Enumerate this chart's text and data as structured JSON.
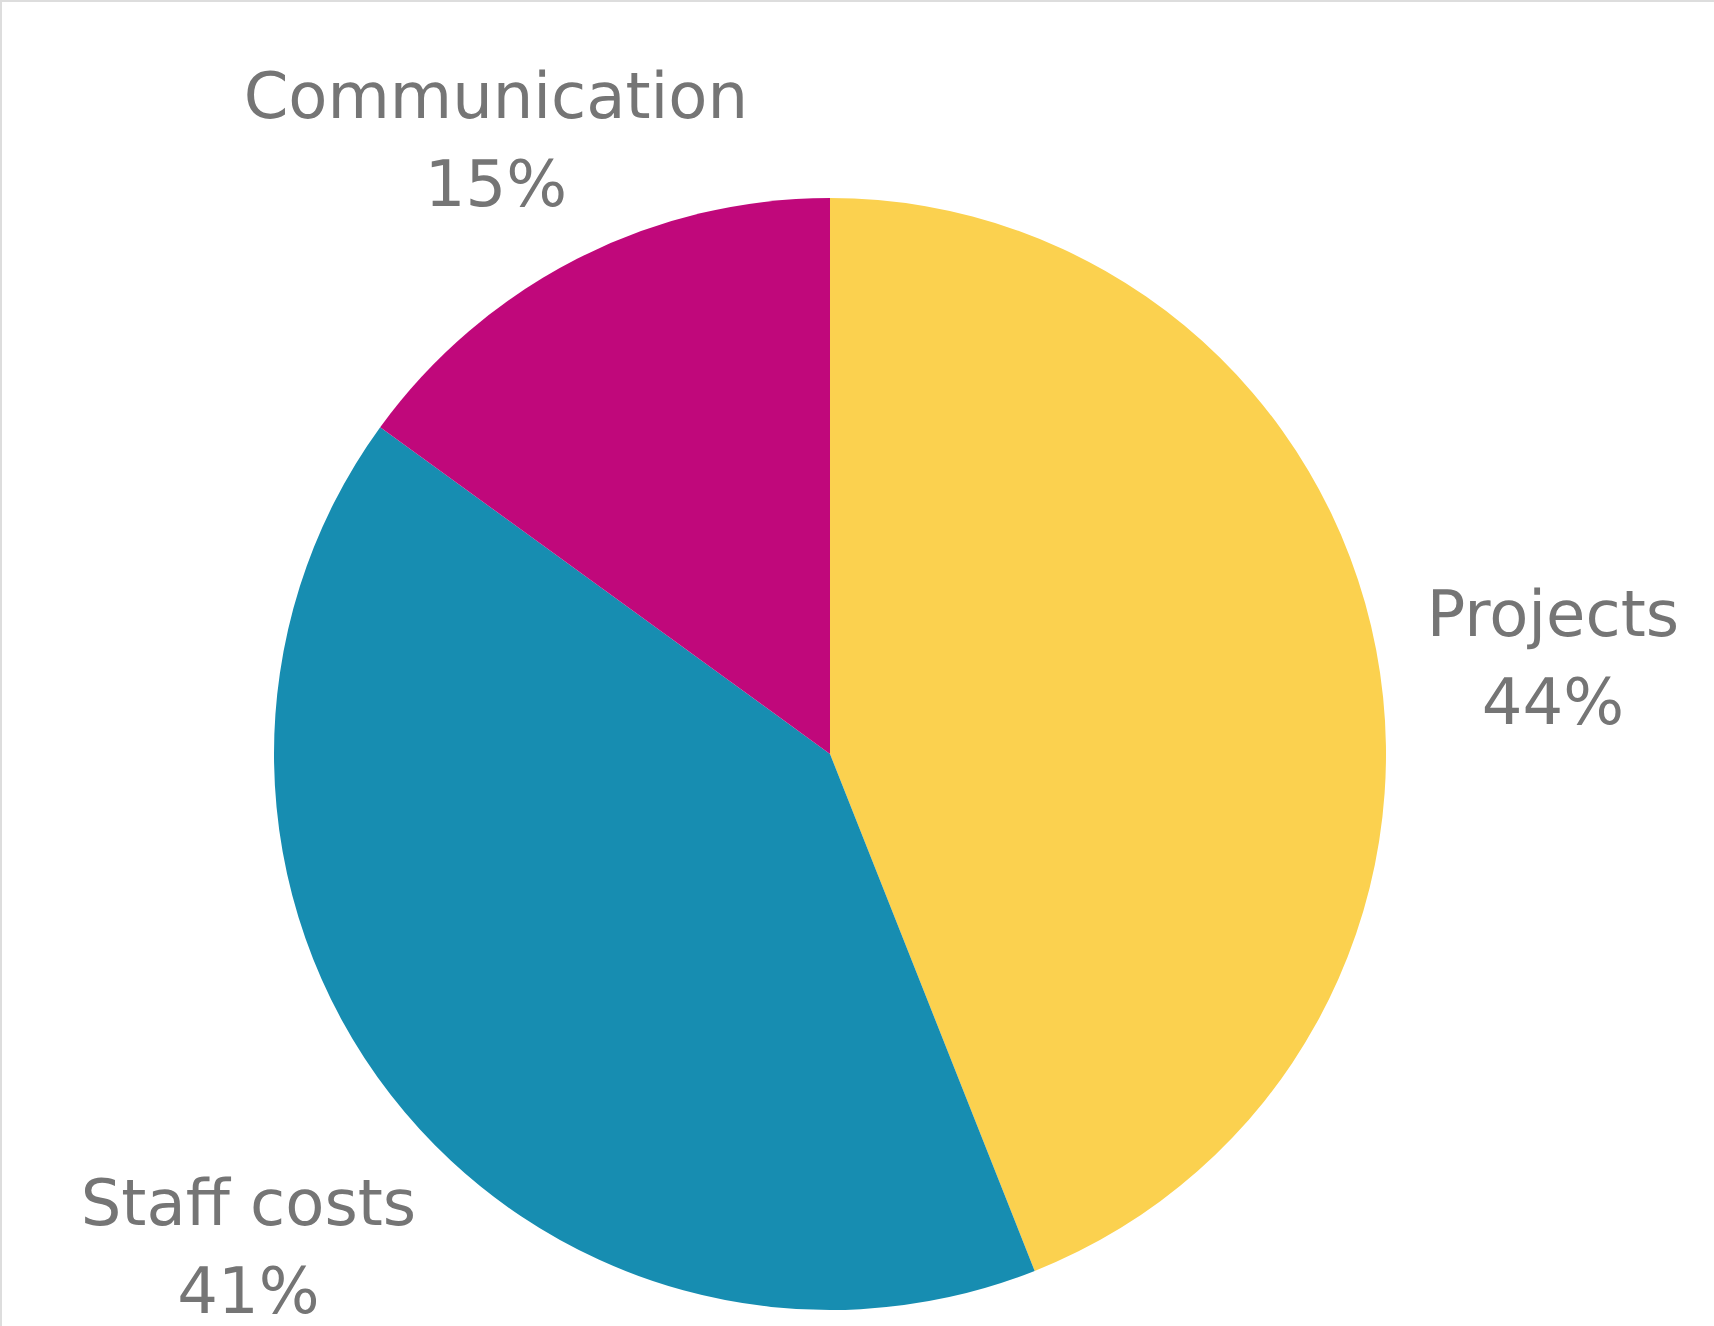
{
  "chart_data": {
    "type": "pie",
    "categories": [
      "Projects",
      "Staff costs",
      "Communication"
    ],
    "values": [
      44,
      41,
      15
    ],
    "value_labels": [
      "44%",
      "41%",
      "15%"
    ],
    "colors": [
      "#fbd14f",
      "#178db1",
      "#c0087b"
    ]
  }
}
